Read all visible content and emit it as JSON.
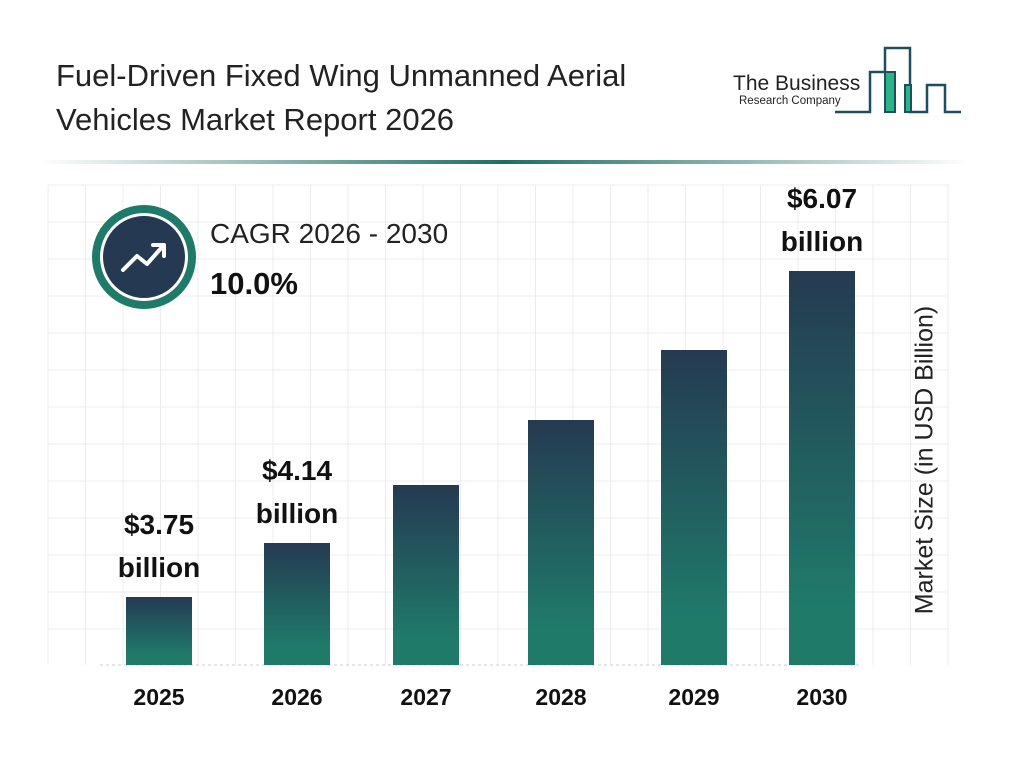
{
  "title": "Fuel-Driven Fixed Wing Unmanned Aerial Vehicles Market Report 2026",
  "logo": {
    "line1": "The Business",
    "line2": "Research Company"
  },
  "cagr": {
    "label": "CAGR 2026 - 2030",
    "value": "10.0%",
    "icon": "trend-up-icon"
  },
  "colors": {
    "bar_top": "#253a52",
    "bar_bottom": "#1f7a6a",
    "accent": "#1f7a6a"
  },
  "chart_data": {
    "type": "bar",
    "title": "Fuel-Driven Fixed Wing Unmanned Aerial Vehicles Market Report 2026",
    "xlabel": "",
    "ylabel": "Market Size (in USD Billion)",
    "categories": [
      "2025",
      "2026",
      "2027",
      "2028",
      "2029",
      "2030"
    ],
    "values": [
      3.75,
      4.14,
      4.55,
      5.01,
      5.51,
      6.07
    ],
    "data_labels": [
      {
        "index": 0,
        "amount": "$3.75",
        "unit": "billion"
      },
      {
        "index": 1,
        "amount": "$4.14",
        "unit": "billion"
      },
      {
        "index": 5,
        "amount": "$6.07",
        "unit": "billion"
      }
    ],
    "grid": true,
    "legend": "none"
  }
}
